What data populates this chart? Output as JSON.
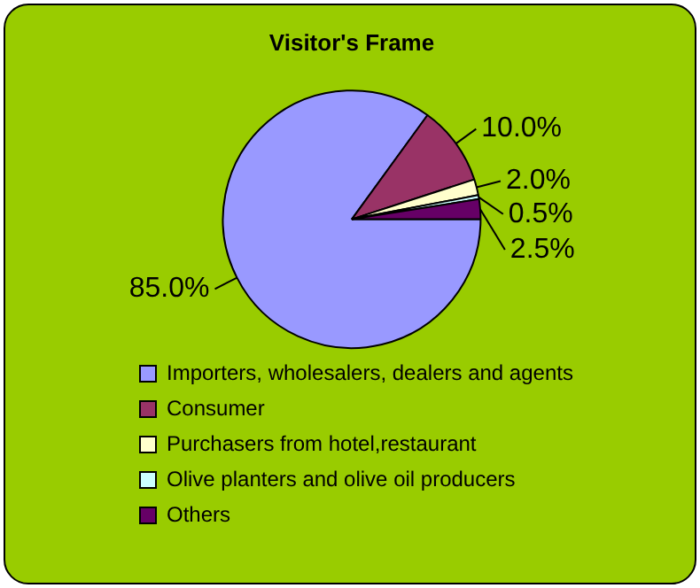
{
  "chart_data": {
    "type": "pie",
    "title": "Visitor's Frame",
    "categories": [
      "Importers, wholesalers, dealers and agents",
      "Consumer",
      "Purchasers from hotel,restaurant",
      "Olive planters and olive oil producers",
      "Others"
    ],
    "values": [
      85,
      10,
      2,
      0.5,
      2.5
    ],
    "colors": [
      "#9999ff",
      "#993366",
      "#ffffcc",
      "#ccffff",
      "#660066"
    ],
    "value_labels": [
      "85.0%",
      "10.0%",
      "2.0%",
      "0.5%",
      "2.5%"
    ],
    "legend": "bottom"
  }
}
